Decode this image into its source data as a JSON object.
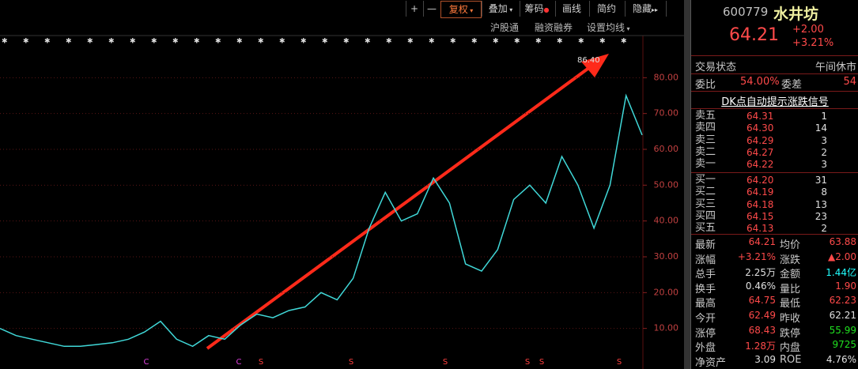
{
  "toolbar": {
    "buttons": [
      "+",
      "—",
      "复权",
      "叠加",
      "筹码",
      "画线",
      "简约",
      "隐藏"
    ],
    "links": [
      "沪股通",
      "融资融券",
      "设置均线"
    ]
  },
  "chart_data": {
    "type": "line",
    "color": "#40d8d8",
    "grid": true,
    "values": [
      10,
      8,
      7,
      6,
      5,
      5,
      5.5,
      6,
      7,
      9,
      12,
      7,
      5,
      8,
      7,
      11,
      14,
      13,
      15,
      16,
      20,
      18,
      24,
      38,
      48,
      40,
      42,
      52,
      45,
      28,
      26,
      32,
      46,
      50,
      45,
      58,
      50,
      38,
      50,
      75,
      64
    ],
    "ylim": [
      0,
      90
    ],
    "yticks": [
      {
        "value": 10,
        "label": "10.00"
      },
      {
        "value": 20,
        "label": "20.00"
      },
      {
        "value": 30,
        "label": "30.00"
      },
      {
        "value": 40,
        "label": "40.00"
      },
      {
        "value": 50,
        "label": "50.00"
      },
      {
        "value": 60,
        "label": "60.00"
      },
      {
        "value": 70,
        "label": "70.00"
      },
      {
        "value": 80,
        "label": "80.00"
      }
    ],
    "annotations": [
      "86.40"
    ],
    "markers": [
      "C",
      "C",
      "S",
      "S",
      "S",
      "S",
      "S",
      "S"
    ]
  },
  "quote": {
    "code": "600779",
    "name": "水井坊",
    "price": "64.21",
    "change": "+2.00",
    "change_pct": "+3.21%",
    "status_label": "交易状态",
    "status": "午间休市",
    "ratio_label": "委比",
    "ratio": "54.00%",
    "diff_label": "委差",
    "diff": "54",
    "signal_link": "DK点自动提示涨跌信号",
    "asks": [
      [
        "卖五",
        "64.31",
        "1"
      ],
      [
        "卖四",
        "64.30",
        "14"
      ],
      [
        "卖三",
        "64.29",
        "3"
      ],
      [
        "卖二",
        "64.27",
        "2"
      ],
      [
        "卖一",
        "64.22",
        "3"
      ]
    ],
    "bids": [
      [
        "买一",
        "64.20",
        "31"
      ],
      [
        "买二",
        "64.19",
        "8"
      ],
      [
        "买三",
        "64.18",
        "13"
      ],
      [
        "买四",
        "64.15",
        "23"
      ],
      [
        "买五",
        "64.13",
        "2"
      ]
    ],
    "stats": [
      [
        "最新",
        "64.21",
        "均价",
        "63.88"
      ],
      [
        "涨幅",
        "+3.21%",
        "涨跌",
        "▲2.00"
      ],
      [
        "总手",
        "2.25万",
        "金额",
        "1.44亿"
      ],
      [
        "换手",
        "0.46%",
        "量比",
        "1.90"
      ],
      [
        "最高",
        "64.75",
        "最低",
        "62.23"
      ],
      [
        "今开",
        "62.49",
        "昨收",
        "62.21"
      ],
      [
        "涨停",
        "68.43",
        "跌停",
        "55.99"
      ],
      [
        "外盘",
        "1.28万",
        "内盘",
        "9725"
      ],
      [
        "净资产",
        "3.09",
        "ROE",
        "4.76%"
      ]
    ]
  }
}
